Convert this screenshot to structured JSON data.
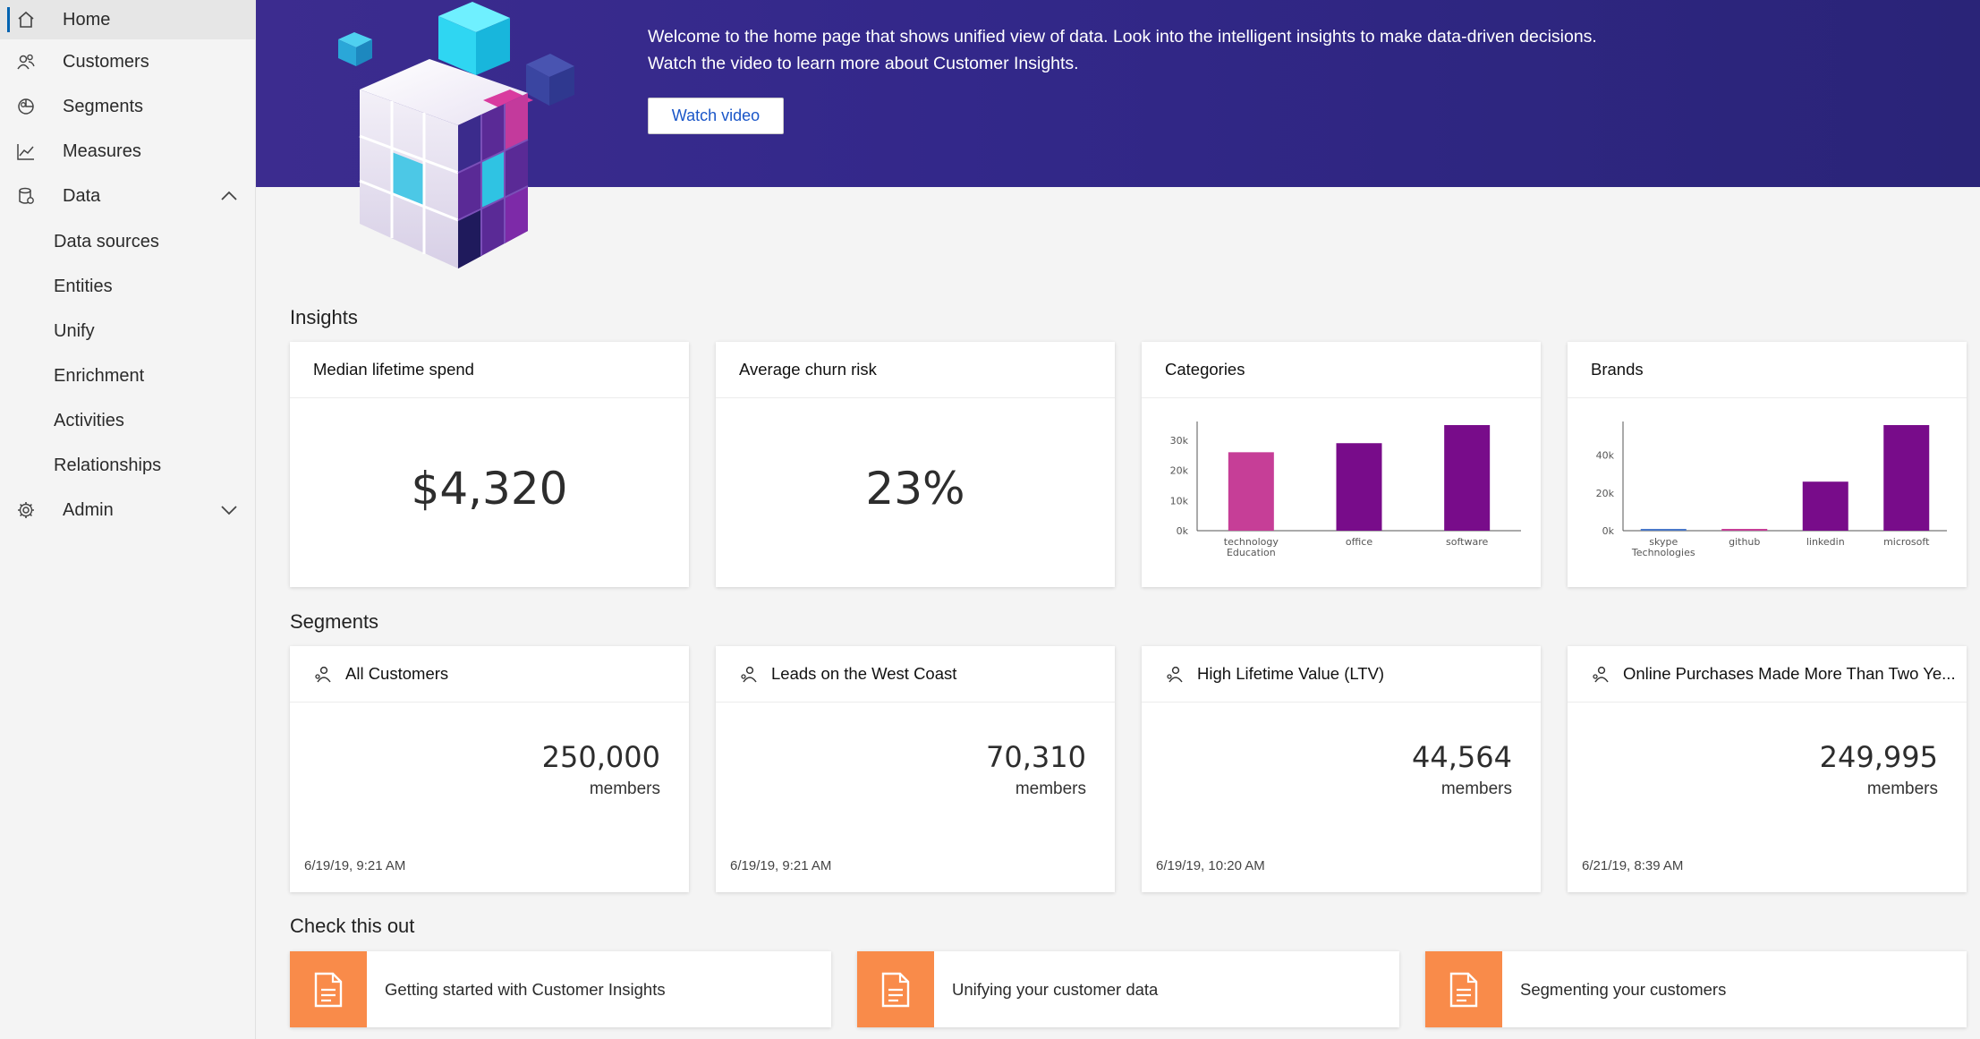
{
  "sidebar": {
    "items": [
      {
        "label": "Home",
        "icon": "home-icon"
      },
      {
        "label": "Customers",
        "icon": "customers-icon"
      },
      {
        "label": "Segments",
        "icon": "segments-icon"
      },
      {
        "label": "Measures",
        "icon": "measures-icon"
      },
      {
        "label": "Data",
        "icon": "data-icon"
      },
      {
        "label": "Data sources"
      },
      {
        "label": "Entities"
      },
      {
        "label": "Unify"
      },
      {
        "label": "Enrichment"
      },
      {
        "label": "Activities"
      },
      {
        "label": "Relationships"
      },
      {
        "label": "Admin",
        "icon": "gear-icon"
      }
    ]
  },
  "banner": {
    "line1": "Welcome to the home page that shows unified view of data. Look into the intelligent insights to make data-driven decisions.",
    "line2": "Watch the video to learn more about Customer Insights.",
    "button": "Watch video"
  },
  "insights": {
    "title": "Insights",
    "median": {
      "title": "Median lifetime spend",
      "value": "$4,320"
    },
    "churn": {
      "title": "Average churn risk",
      "value": "23%"
    },
    "categories": {
      "title": "Categories"
    },
    "brands": {
      "title": "Brands"
    }
  },
  "chart_data": [
    {
      "type": "bar",
      "title": "Categories",
      "categories": [
        "technology\nEducation",
        "office",
        "software"
      ],
      "values": [
        26000,
        29000,
        35000
      ],
      "colors": [
        "#c63e97",
        "#780c8a",
        "#780c8a"
      ],
      "yticks": [
        "0k",
        "10k",
        "20k",
        "30k"
      ],
      "ylim": [
        0,
        35000
      ],
      "grid": false
    },
    {
      "type": "bar",
      "title": "Brands",
      "categories": [
        "skype\nTechnologies",
        "github",
        "linkedin",
        "microsoft"
      ],
      "values": [
        600,
        600,
        26000,
        56000
      ],
      "colors": [
        "#4a78c9",
        "#c63e97",
        "#780c8a",
        "#780c8a"
      ],
      "yticks": [
        "0k",
        "20k",
        "40k"
      ],
      "ylim": [
        0,
        56000
      ],
      "grid": false
    }
  ],
  "segments": {
    "title": "Segments",
    "members_label": "members",
    "cards": [
      {
        "name": "All Customers",
        "count": "250,000",
        "time": "6/19/19, 9:21 AM"
      },
      {
        "name": "Leads on the West Coast",
        "count": "70,310",
        "time": "6/19/19, 9:21 AM"
      },
      {
        "name": "High Lifetime Value (LTV)",
        "count": "44,564",
        "time": "6/19/19, 10:20 AM"
      },
      {
        "name": "Online Purchases Made More Than Two Ye...",
        "count": "249,995",
        "time": "6/21/19, 8:39 AM"
      }
    ]
  },
  "check": {
    "title": "Check this out",
    "items": [
      {
        "label": "Getting started with Customer Insights"
      },
      {
        "label": "Unifying your customer data"
      },
      {
        "label": "Segmenting your customers"
      }
    ]
  }
}
